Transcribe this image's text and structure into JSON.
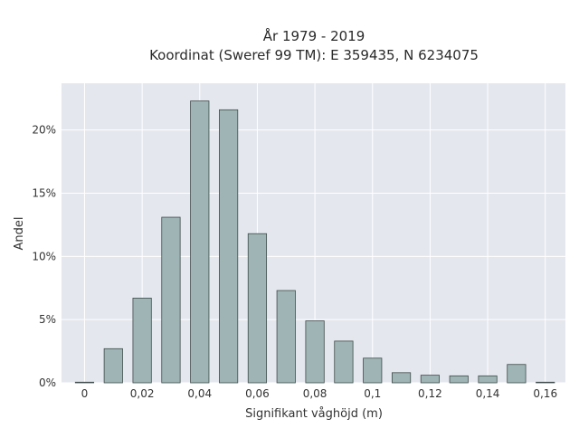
{
  "chart_data": {
    "type": "bar",
    "title": "År 1979 - 2019",
    "subtitle": "Koordinat (Sweref 99 TM): E 359435, N 6234075",
    "xlabel": "Signifikant våghöjd (m)",
    "ylabel": "Andel",
    "xlim": [
      -0.008,
      0.167
    ],
    "ylim": [
      0,
      23.7
    ],
    "x": [
      0.0,
      0.01,
      0.02,
      0.03,
      0.04,
      0.05,
      0.06,
      0.07,
      0.08,
      0.09,
      0.1,
      0.11,
      0.12,
      0.13,
      0.14,
      0.15,
      0.16
    ],
    "values": [
      0.05,
      2.7,
      6.7,
      13.1,
      22.3,
      21.6,
      11.8,
      7.3,
      4.9,
      3.3,
      1.95,
      0.8,
      0.6,
      0.55,
      0.55,
      1.45,
      0.05
    ],
    "bar_width": 0.0032,
    "x_ticks": [
      {
        "value": 0.0,
        "label": "0"
      },
      {
        "value": 0.02,
        "label": "0,02"
      },
      {
        "value": 0.04,
        "label": "0,04"
      },
      {
        "value": 0.06,
        "label": "0,06"
      },
      {
        "value": 0.08,
        "label": "0,08"
      },
      {
        "value": 0.1,
        "label": "0,1"
      },
      {
        "value": 0.12,
        "label": "0,12"
      },
      {
        "value": 0.14,
        "label": "0,14"
      },
      {
        "value": 0.16,
        "label": "0,16"
      }
    ],
    "y_ticks": [
      {
        "value": 0,
        "label": "0%"
      },
      {
        "value": 5,
        "label": "5%"
      },
      {
        "value": 10,
        "label": "10%"
      },
      {
        "value": 15,
        "label": "15%"
      },
      {
        "value": 20,
        "label": "20%"
      }
    ],
    "grid": true,
    "colors": {
      "plot_background": "#e5e7ef",
      "grid": "#ffffff",
      "bar_fill": "#9fb5b5",
      "bar_stroke": "#3e4a4a"
    }
  }
}
